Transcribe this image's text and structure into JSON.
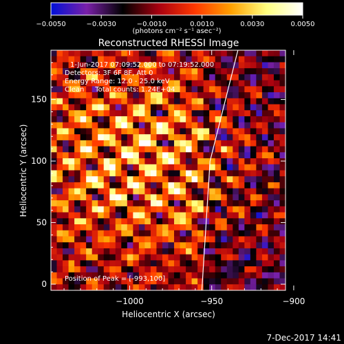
{
  "chart_data": {
    "type": "heatmap",
    "title": "Reconstructed RHESSI Image",
    "xlabel": "Heliocentric X (arcsec)",
    "ylabel": "Heliocentric Y (arcsec)",
    "xlim": [
      -1048,
      -905
    ],
    "ylim": [
      -5,
      190
    ],
    "x_ticks": [
      -1000,
      -950,
      -900
    ],
    "x_tick_labels": [
      "−1000",
      "−950",
      "−900"
    ],
    "y_ticks": [
      0,
      50,
      100,
      150
    ],
    "y_tick_labels": [
      "0",
      "50",
      "100",
      "150"
    ],
    "annotations": [
      "1-Jun-2017 07:09:52.000 to 07:19:52.000",
      "Detectors: 3F 6F 8F, Att 0",
      "Energy Range: 12.0 - 25.0 keV",
      "Clean     Total counts: 1.24E+04"
    ],
    "peak_label": "Position of Peak = [-993,100]",
    "peak": {
      "x": -993,
      "y": 100
    },
    "limb_line": [
      [
        -934,
        190
      ],
      [
        -951,
        100
      ],
      [
        -956,
        -5
      ]
    ],
    "colorbar": {
      "range": [
        -0.005,
        0.005
      ],
      "ticks": [
        -0.005,
        -0.003,
        -0.001,
        0.001,
        0.003,
        0.005
      ],
      "tick_labels": [
        "−0.0050",
        "−0.0030",
        "−0.0010",
        "0.0010",
        "0.0030",
        "0.0050"
      ],
      "unit_label": "(photons cm⁻² s⁻¹ asec⁻²)",
      "colors": [
        "#0010d8",
        "#7a20a8",
        "#000000",
        "#a80010",
        "#ff3800",
        "#ffa000",
        "#ffff80",
        "#ffffff"
      ]
    }
  },
  "timestamp": "7-Dec-2017 14:41"
}
